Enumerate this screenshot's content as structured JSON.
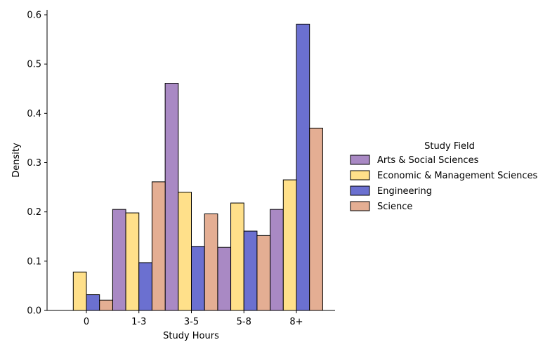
{
  "chart_data": {
    "type": "bar",
    "xlabel": "Study Hours",
    "ylabel": "Density",
    "categories": [
      "0",
      "1-3",
      "3-5",
      "5-8",
      "8+"
    ],
    "ylim": [
      0,
      0.61
    ],
    "yticks": [
      0.0,
      0.1,
      0.2,
      0.3,
      0.4,
      0.5,
      0.6
    ],
    "ytick_labels": [
      "0.0",
      "0.1",
      "0.2",
      "0.3",
      "0.4",
      "0.5",
      "0.6"
    ],
    "grid": false,
    "legend": {
      "title": "Study Field",
      "placement": "right"
    },
    "series": [
      {
        "name": "Arts & Social Sciences",
        "color": "#a989c4",
        "values": [
          0.0,
          0.205,
          0.461,
          0.128,
          0.205
        ]
      },
      {
        "name": "Economic & Management Sciences",
        "color": "#ffe08a",
        "values": [
          0.078,
          0.198,
          0.24,
          0.218,
          0.265
        ]
      },
      {
        "name": "Engineering",
        "color": "#6b70d0",
        "values": [
          0.032,
          0.097,
          0.13,
          0.161,
          0.581
        ]
      },
      {
        "name": "Science",
        "color": "#e4ae93",
        "values": [
          0.021,
          0.261,
          0.196,
          0.152,
          0.37
        ]
      }
    ]
  }
}
